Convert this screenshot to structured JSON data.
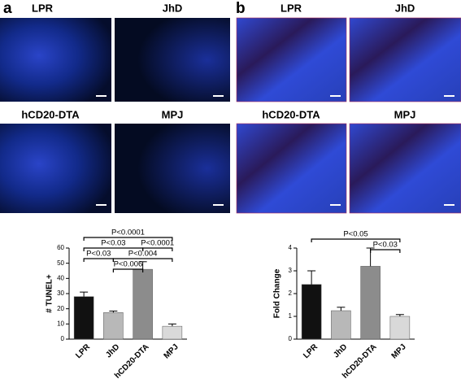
{
  "panels": [
    {
      "letter": "a",
      "images": [
        {
          "label": "LPR"
        },
        {
          "label": "JhD"
        },
        {
          "label": "hCD20-DTA"
        },
        {
          "label": "MPJ"
        }
      ]
    },
    {
      "letter": "b",
      "images": [
        {
          "label": "LPR"
        },
        {
          "label": "JhD"
        },
        {
          "label": "hCD20-DTA"
        },
        {
          "label": "MPJ"
        }
      ]
    }
  ],
  "chart_data": [
    {
      "type": "bar",
      "y_label": "# TUNEL+",
      "categories": [
        "LPR",
        "JhD",
        "hCD20-DTA",
        "MPJ"
      ],
      "values": [
        28,
        17.5,
        46,
        8.5
      ],
      "errors": [
        3,
        1,
        5,
        1.5
      ],
      "colors": [
        "#111111",
        "#b8b8b8",
        "#8c8c8c",
        "#d9d9d9"
      ],
      "ylim": [
        0,
        60
      ],
      "yticks": [
        0,
        10,
        20,
        30,
        40,
        50,
        60
      ],
      "comparisons": [
        {
          "label": "P<0.0001",
          "from": 0,
          "to": 3
        },
        {
          "label": "P<0.03",
          "from": 0,
          "to": 2
        },
        {
          "label": "P<0.0001",
          "from": 2,
          "to": 3
        },
        {
          "label": "P<0.03",
          "from": 0,
          "to": 1
        },
        {
          "label": "P<0.004",
          "from": 1,
          "to": 3
        },
        {
          "label": "P<0.006",
          "from": 1,
          "to": 2
        }
      ]
    },
    {
      "type": "bar",
      "y_label": "Fold Change",
      "categories": [
        "LPR",
        "JhD",
        "hCD20-DTA",
        "MPJ"
      ],
      "values": [
        2.4,
        1.25,
        3.2,
        1.0
      ],
      "errors": [
        0.6,
        0.15,
        0.8,
        0.08
      ],
      "colors": [
        "#111111",
        "#b8b8b8",
        "#8c8c8c",
        "#d9d9d9"
      ],
      "ylim": [
        0,
        4
      ],
      "yticks": [
        0,
        1,
        2,
        3,
        4
      ],
      "comparisons": [
        {
          "label": "P<0.05",
          "from": 0,
          "to": 3
        },
        {
          "label": "P<0.03",
          "from": 2,
          "to": 3
        }
      ]
    }
  ]
}
